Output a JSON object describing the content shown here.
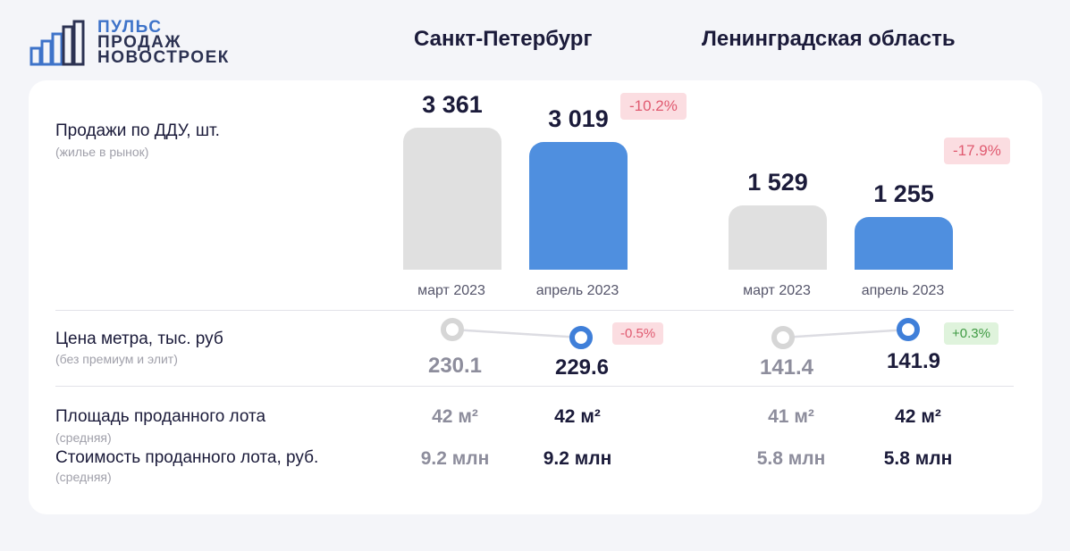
{
  "logo": {
    "line1": "ПУЛЬС",
    "line2": "ПРОДАЖ",
    "line3": "НОВОСТРОЕК"
  },
  "regions": [
    "Санкт-Петербург",
    "Ленинградская область"
  ],
  "sales": {
    "label": "Продажи по ДДУ, шт.",
    "sub": "(жилье в рынок)",
    "badges": [
      "-10.2%",
      "-17.9%"
    ]
  },
  "price": {
    "label": "Цена метра, тыс. руб",
    "sub": "(без премиум и элит)",
    "badges": [
      "-0.5%",
      "+0.3%"
    ]
  },
  "area": {
    "label": "Площадь проданного лота",
    "sub": "(средняя)",
    "values": [
      "42 м²",
      "42 м²",
      "41 м²",
      "42 м²"
    ]
  },
  "cost": {
    "label": "Стоимость проданного лота, руб.",
    "sub": "(средняя)",
    "values": [
      "9.2 млн",
      "9.2 млн",
      "5.8 млн",
      "5.8 млн"
    ]
  },
  "colors": {
    "march": "#e0e0e0",
    "april": "#4f8fdf",
    "neg": "#e05a70",
    "pos": "#3f9a43"
  },
  "chart_data": [
    {
      "type": "bar",
      "categories": [
        "март 2023",
        "апрель 2023"
      ],
      "series": [
        {
          "name": "Санкт-Петербург",
          "values": [
            3361,
            3019
          ],
          "labels": [
            "3 361",
            "3 019"
          ]
        },
        {
          "name": "Ленинградская область",
          "values": [
            1529,
            1255
          ],
          "labels": [
            "1 529",
            "1 255"
          ]
        }
      ],
      "ylim": [
        0,
        3361
      ]
    },
    {
      "type": "line",
      "categories": [
        "март 2023",
        "апрель 2023"
      ],
      "series": [
        {
          "name": "Санкт-Петербург",
          "values": [
            230.1,
            229.6
          ],
          "labels": [
            "230.1",
            "229.6"
          ]
        },
        {
          "name": "Ленинградская область",
          "values": [
            141.4,
            141.9
          ],
          "labels": [
            "141.4",
            "141.9"
          ]
        }
      ]
    }
  ]
}
